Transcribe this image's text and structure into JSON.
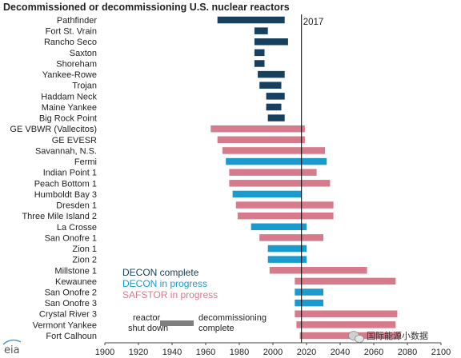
{
  "title": "Decommissioned or decommissioning U.S. nuclear reactors",
  "colors": {
    "decon_complete": "#17405f",
    "decon_in_progress": "#1a9bd0",
    "safstor_in_progress": "#d67b8b",
    "text": "#222222"
  },
  "legend": {
    "items": [
      {
        "label": "DECON complete",
        "color": "#17405f"
      },
      {
        "label": "DECON in progress",
        "color": "#1a9bd0"
      },
      {
        "label": "SAFSTOR in progress",
        "color": "#d67b8b"
      }
    ],
    "bar_key": {
      "left_label_1": "reactor",
      "left_label_2": "shut down",
      "right_label_1": "decommissioning",
      "right_label_2": "complete",
      "color": "#7f7f7f"
    }
  },
  "watermark": {
    "icon": "wechat-icon",
    "text": "国际能源小数据"
  },
  "source_logo": {
    "text": "eia"
  },
  "chart_data": {
    "type": "bar",
    "orientation": "horizontal-range",
    "xlabel": "",
    "ylabel": "",
    "xlim": [
      1900,
      2100
    ],
    "xticks": [
      1900,
      1920,
      1940,
      1960,
      1980,
      2000,
      2020,
      2040,
      2060,
      2080,
      2100
    ],
    "reference_line": {
      "x": 2017,
      "label": "2017"
    },
    "grid": false,
    "legend_position": "lower-left",
    "reactors": [
      {
        "name": "Pathfinder",
        "start": 1967,
        "end": 2007,
        "status": "decon_complete"
      },
      {
        "name": "Fort St. Vrain",
        "start": 1989,
        "end": 1997,
        "status": "decon_complete"
      },
      {
        "name": "Rancho Seco",
        "start": 1989,
        "end": 2009,
        "status": "decon_complete"
      },
      {
        "name": "Saxton",
        "start": 1989,
        "end": 1995,
        "status": "decon_complete"
      },
      {
        "name": "Shoreham",
        "start": 1989,
        "end": 1995,
        "status": "decon_complete"
      },
      {
        "name": "Yankee-Rowe",
        "start": 1991,
        "end": 2007,
        "status": "decon_complete"
      },
      {
        "name": "Trojan",
        "start": 1992,
        "end": 2005,
        "status": "decon_complete"
      },
      {
        "name": "Haddam Neck",
        "start": 1996,
        "end": 2007,
        "status": "decon_complete"
      },
      {
        "name": "Maine Yankee",
        "start": 1996,
        "end": 2005,
        "status": "decon_complete"
      },
      {
        "name": "Big Rock Point",
        "start": 1997,
        "end": 2007,
        "status": "decon_complete"
      },
      {
        "name": "GE VBWR (Vallecitos)",
        "start": 1963,
        "end": 2019,
        "status": "safstor_in_progress"
      },
      {
        "name": "GE EVESR",
        "start": 1967,
        "end": 2019,
        "status": "safstor_in_progress"
      },
      {
        "name": "Savannah, N.S.",
        "start": 1970,
        "end": 2031,
        "status": "safstor_in_progress"
      },
      {
        "name": "Fermi",
        "start": 1972,
        "end": 2032,
        "status": "decon_in_progress"
      },
      {
        "name": "Indian Point 1",
        "start": 1974,
        "end": 2026,
        "status": "safstor_in_progress"
      },
      {
        "name": "Peach Bottom 1",
        "start": 1974,
        "end": 2034,
        "status": "safstor_in_progress"
      },
      {
        "name": "Humboldt Bay 3",
        "start": 1976,
        "end": 2017,
        "status": "decon_in_progress"
      },
      {
        "name": "Dresden 1",
        "start": 1978,
        "end": 2036,
        "status": "safstor_in_progress"
      },
      {
        "name": "Three Mile Island 2",
        "start": 1979,
        "end": 2036,
        "status": "safstor_in_progress"
      },
      {
        "name": "La Crosse",
        "start": 1987,
        "end": 2020,
        "status": "decon_in_progress"
      },
      {
        "name": "San Onofre 1",
        "start": 1992,
        "end": 2030,
        "status": "safstor_in_progress"
      },
      {
        "name": "Zion 1",
        "start": 1997,
        "end": 2020,
        "status": "decon_in_progress"
      },
      {
        "name": "Zion 2",
        "start": 1997,
        "end": 2020,
        "status": "decon_in_progress"
      },
      {
        "name": "Millstone 1",
        "start": 1998,
        "end": 2056,
        "status": "safstor_in_progress"
      },
      {
        "name": "Kewaunee",
        "start": 2013,
        "end": 2073,
        "status": "safstor_in_progress"
      },
      {
        "name": "San Onofre 2",
        "start": 2013,
        "end": 2030,
        "status": "decon_in_progress"
      },
      {
        "name": "San Onofre 3",
        "start": 2013,
        "end": 2030,
        "status": "decon_in_progress"
      },
      {
        "name": "Crystal River 3",
        "start": 2013,
        "end": 2074,
        "status": "safstor_in_progress"
      },
      {
        "name": "Vermont Yankee",
        "start": 2014,
        "end": 2073,
        "status": "safstor_in_progress"
      },
      {
        "name": "Fort Calhoun",
        "start": 2016,
        "end": 2076,
        "status": "safstor_in_progress"
      }
    ]
  }
}
